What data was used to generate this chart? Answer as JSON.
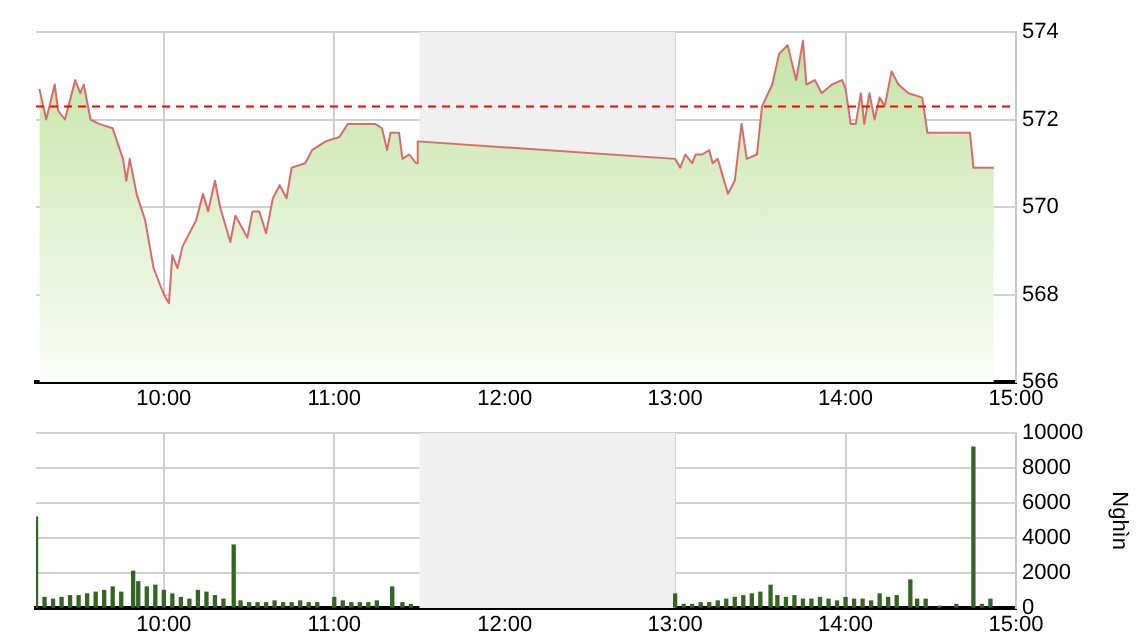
{
  "chart_data": [
    {
      "type": "area",
      "color": "#d96b6b",
      "xlim": [
        9.25,
        15
      ],
      "xticks": [
        {
          "value": 10,
          "label": "10:00"
        },
        {
          "value": 11,
          "label": "11:00"
        },
        {
          "value": 12,
          "label": "12:00"
        },
        {
          "value": 13,
          "label": "13:00"
        },
        {
          "value": 14,
          "label": "14:00"
        },
        {
          "value": 15,
          "label": "15:00"
        }
      ],
      "ylim": [
        566,
        574
      ],
      "yticks": [
        566,
        568,
        570,
        572,
        574
      ],
      "grid": true,
      "x": [
        9.27,
        9.31,
        9.36,
        9.38,
        9.42,
        9.48,
        9.51,
        9.53,
        9.57,
        9.62,
        9.7,
        9.76,
        9.78,
        9.8,
        9.84,
        9.89,
        9.94,
        10.0,
        10.03,
        10.05,
        10.08,
        10.11,
        10.19,
        10.23,
        10.26,
        10.3,
        10.33,
        10.39,
        10.42,
        10.49,
        10.52,
        10.56,
        10.6,
        10.64,
        10.68,
        10.72,
        10.75,
        10.83,
        10.87,
        10.95,
        11.03,
        11.08,
        11.15,
        11.24,
        11.28,
        11.31,
        11.33,
        11.38,
        11.4,
        11.44,
        11.48,
        11.49,
        13.0,
        13.03,
        13.06,
        13.1,
        13.12,
        13.16,
        13.2,
        13.22,
        13.25,
        13.31,
        13.35,
        13.39,
        13.42,
        13.48,
        13.51,
        13.57,
        13.61,
        13.66,
        13.71,
        13.75,
        13.77,
        13.82,
        13.86,
        13.92,
        13.98,
        14.0,
        14.03,
        14.06,
        14.09,
        14.11,
        14.14,
        14.17,
        14.2,
        14.23,
        14.27,
        14.31,
        14.37,
        14.45,
        14.48,
        14.73,
        14.75,
        14.87
      ],
      "values": [
        572.7,
        572.0,
        572.8,
        572.2,
        572.0,
        572.9,
        572.6,
        572.8,
        572.0,
        571.9,
        571.8,
        571.1,
        570.6,
        571.1,
        570.3,
        569.7,
        568.6,
        568.0,
        567.8,
        568.9,
        568.6,
        569.1,
        569.7,
        570.3,
        569.9,
        570.6,
        570.0,
        569.2,
        569.8,
        569.3,
        569.9,
        569.9,
        569.4,
        570.2,
        570.5,
        570.2,
        570.9,
        571.0,
        571.3,
        571.5,
        571.6,
        571.9,
        571.9,
        571.9,
        571.8,
        571.3,
        571.7,
        571.7,
        571.1,
        571.2,
        571.0,
        571.5,
        571.1,
        570.9,
        571.2,
        571.0,
        571.2,
        571.2,
        571.3,
        571.0,
        571.1,
        570.3,
        570.6,
        571.9,
        571.1,
        571.2,
        572.3,
        572.8,
        573.5,
        573.7,
        572.9,
        573.8,
        572.8,
        572.9,
        572.6,
        572.8,
        572.9,
        572.7,
        571.9,
        571.9,
        572.6,
        571.9,
        572.6,
        572.0,
        572.5,
        572.3,
        573.1,
        572.8,
        572.6,
        572.5,
        571.7,
        571.7,
        570.9,
        570.9
      ],
      "bands": [
        {
          "axis": "x",
          "from": 11.5,
          "to": 13,
          "color": "#f0f0f0"
        }
      ],
      "ref_lines": [
        {
          "axis": "y",
          "value": 572.3,
          "color": "#ff0000",
          "line_style": "dashed"
        }
      ]
    },
    {
      "type": "bar",
      "color": "#336622",
      "ylabel": "Nghìn",
      "xlim": [
        9.25,
        15
      ],
      "xticks": [
        {
          "value": 10,
          "label": "10:00"
        },
        {
          "value": 11,
          "label": "11:00"
        },
        {
          "value": 12,
          "label": "12:00"
        },
        {
          "value": 13,
          "label": "13:00"
        },
        {
          "value": 14,
          "label": "14:00"
        },
        {
          "value": 15,
          "label": "15:00"
        }
      ],
      "ylim": [
        0,
        10000
      ],
      "yticks": [
        0,
        2000,
        4000,
        6000,
        8000,
        10000
      ],
      "grid": true,
      "x": [
        9.25,
        9.3,
        9.35,
        9.4,
        9.45,
        9.5,
        9.55,
        9.6,
        9.65,
        9.7,
        9.75,
        9.82,
        9.85,
        9.9,
        9.95,
        10.0,
        10.05,
        10.1,
        10.15,
        10.2,
        10.25,
        10.3,
        10.35,
        10.41,
        10.45,
        10.5,
        10.55,
        10.6,
        10.65,
        10.7,
        10.75,
        10.8,
        10.85,
        10.9,
        11.0,
        11.05,
        11.1,
        11.15,
        11.2,
        11.25,
        11.34,
        11.4,
        11.45,
        13.0,
        13.05,
        13.1,
        13.15,
        13.2,
        13.25,
        13.3,
        13.35,
        13.4,
        13.45,
        13.5,
        13.56,
        13.6,
        13.65,
        13.7,
        13.75,
        13.8,
        13.85,
        13.9,
        13.95,
        14.0,
        14.05,
        14.1,
        14.15,
        14.2,
        14.25,
        14.3,
        14.38,
        14.42,
        14.47,
        14.55,
        14.65,
        14.75,
        14.8,
        14.85
      ],
      "values": [
        5200,
        600,
        500,
        600,
        700,
        700,
        800,
        900,
        1000,
        1200,
        900,
        2100,
        1500,
        1200,
        1300,
        1000,
        800,
        600,
        500,
        1000,
        900,
        700,
        500,
        3600,
        400,
        300,
        300,
        300,
        400,
        300,
        300,
        400,
        300,
        300,
        600,
        400,
        300,
        300,
        300,
        400,
        1200,
        300,
        200,
        800,
        200,
        200,
        300,
        300,
        400,
        500,
        600,
        700,
        800,
        900,
        1300,
        700,
        600,
        700,
        500,
        500,
        600,
        500,
        400,
        600,
        500,
        500,
        400,
        800,
        600,
        700,
        1600,
        500,
        500,
        100,
        200,
        9200,
        200,
        500
      ],
      "bands": [
        {
          "axis": "x",
          "from": 11.5,
          "to": 13,
          "color": "#f0f0f0"
        }
      ]
    }
  ]
}
